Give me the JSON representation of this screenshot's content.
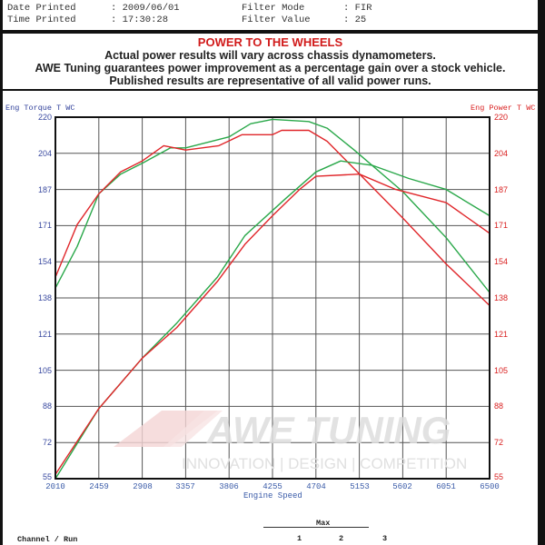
{
  "header": {
    "date_label": "Date Printed",
    "date_value": ": 2009/06/01",
    "time_label": "Time Printed",
    "time_value": ": 17:30:28",
    "filter_mode_label": "Filter Mode",
    "filter_mode_value": ": FIR",
    "filter_value_label": "Filter Value",
    "filter_value_value": ": 25"
  },
  "notice": {
    "title": "POWER TO THE WHEELS",
    "line1": "Actual power results will vary across chassis dynamometers.",
    "line2": "AWE Tuning guarantees power improvement as a percentage gain over a stock vehicle.",
    "line3": "Published results are representative of all valid power runs."
  },
  "watermark": {
    "brand": "AWE TUNING",
    "tagline": "INNOVATION | DESIGN | COMPETITION"
  },
  "legend": {
    "max_label": "Max",
    "channel_run_label": "Channel / Run",
    "columns": [
      "1",
      "2",
      "3"
    ]
  },
  "colors": {
    "green": "#2aa84a",
    "red": "#e0262a",
    "left_axis": "#3a4aa0",
    "right_axis": "#d92020"
  },
  "chart_data": {
    "type": "line",
    "title": "POWER TO THE WHEELS",
    "xlabel": "Engine Speed",
    "ylabel_left": "Eng Torque T WC",
    "ylabel_right": "Eng Power T WC",
    "x_ticks": [
      2010,
      2459,
      2908,
      3357,
      3806,
      4255,
      4704,
      5153,
      5602,
      6051,
      6500
    ],
    "y_ticks": [
      220,
      204,
      187,
      171,
      154,
      138,
      121,
      105,
      88,
      72,
      55
    ],
    "xlim": [
      2010,
      6500
    ],
    "ylim": [
      55,
      220
    ],
    "grid": true,
    "series": [
      {
        "name": "Torque (green)",
        "color": "#2aa84a",
        "x": [
          2010,
          2235,
          2459,
          2684,
          2908,
          3200,
          3357,
          3806,
          4030,
          4255,
          4630,
          4820,
          5100,
          5602,
          6051,
          6500
        ],
        "values": [
          142,
          161,
          185,
          194,
          199,
          206,
          206,
          211,
          217,
          219,
          218,
          215,
          205,
          186,
          165,
          140
        ]
      },
      {
        "name": "Torque (red)",
        "color": "#e0262a",
        "x": [
          2010,
          2235,
          2459,
          2684,
          2908,
          3130,
          3357,
          3700,
          3940,
          4255,
          4350,
          4630,
          4820,
          5200,
          5602,
          6051,
          6500
        ],
        "values": [
          147,
          171,
          185,
          195,
          200,
          207,
          205,
          207,
          212,
          212,
          214,
          214,
          209,
          192,
          174,
          153,
          134
        ]
      },
      {
        "name": "Power (green)",
        "color": "#2aa84a",
        "x": [
          2010,
          2459,
          2908,
          3265,
          3685,
          3970,
          4395,
          4704,
          4960,
          5290,
          5665,
          6051,
          6500
        ],
        "values": [
          55,
          87,
          110,
          126,
          147,
          166,
          183,
          195,
          200,
          198,
          192,
          187,
          175
        ]
      },
      {
        "name": "Power (red)",
        "color": "#e0262a",
        "x": [
          2010,
          2459,
          2908,
          3265,
          3685,
          3970,
          4255,
          4535,
          4704,
          5153,
          5530,
          6051,
          6500
        ],
        "values": [
          57,
          87,
          110,
          124,
          145,
          162,
          175,
          187,
          193,
          194,
          187,
          181,
          167
        ]
      }
    ]
  }
}
